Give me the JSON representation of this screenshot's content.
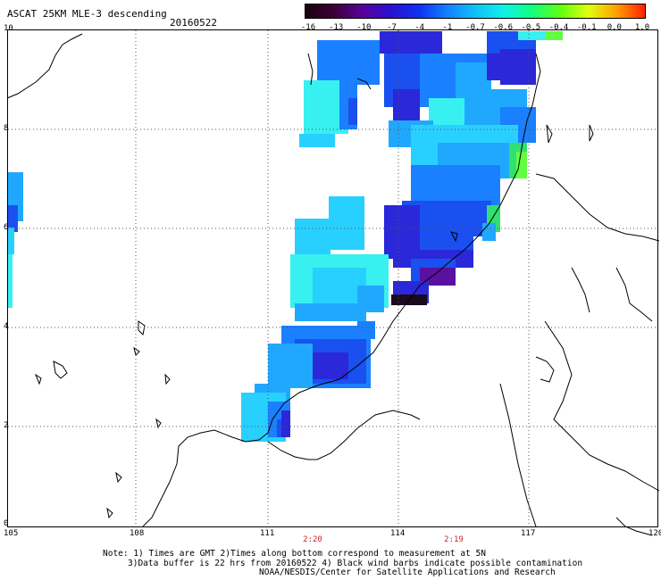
{
  "header": {
    "title": "ASCAT 25KM MLE-3 descending",
    "date": "20160522"
  },
  "colorbar": {
    "labels": [
      "-16",
      "-13",
      "-10",
      "-7",
      "-4",
      "-1",
      "-0.7",
      "-0.6",
      "-0.5",
      "-0.4",
      "-0.1",
      "0.0",
      "1.0"
    ],
    "colors": [
      "#1a0010",
      "#3c0038",
      "#5a009a",
      "#2a10d0",
      "#1030f0",
      "#1080ff",
      "#10c0f8",
      "#10f0e8",
      "#10ff80",
      "#60ff10",
      "#e0ff10",
      "#ffa000",
      "#ff2000"
    ]
  },
  "axes": {
    "lon_labels": [
      "105",
      "108",
      "111",
      "114",
      "117",
      "120"
    ],
    "lat_labels": [
      "10",
      "8",
      "6",
      "4",
      "2",
      "0"
    ]
  },
  "times": [
    "2:20",
    "2:19"
  ],
  "note": {
    "line1": "Note: 1) Times are GMT 2)Times along bottom correspond to measurement at 5N",
    "line2": "3)Data buffer is 22 hrs from 20160522 4) Black wind barbs indicate possible contamination",
    "line3": "NOAA/NESDIS/Center for Satellite Applications and Research"
  },
  "style": {
    "grid_color": "#555555",
    "coast_color": "#000000",
    "time_label_color": "#d42020"
  }
}
